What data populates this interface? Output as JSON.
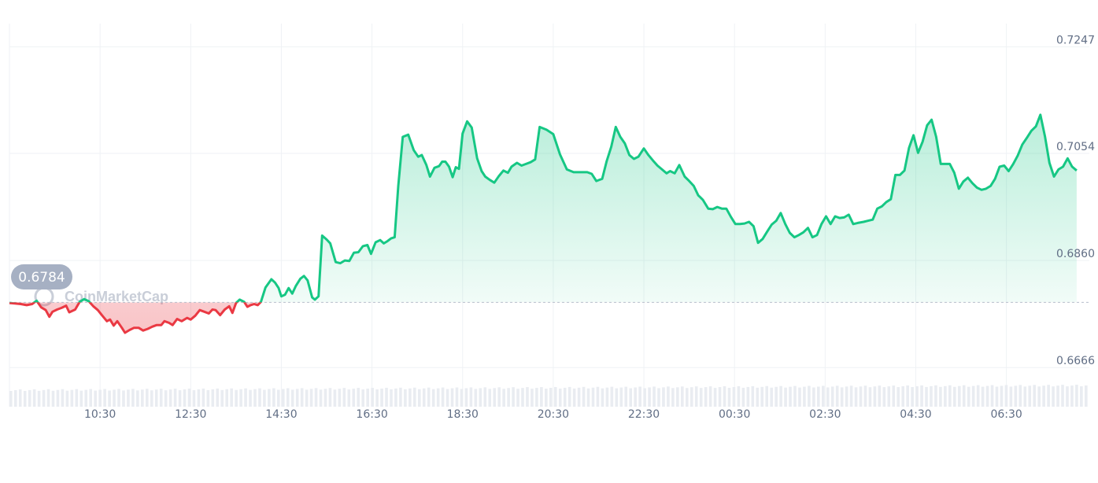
{
  "watermark": {
    "text": "CoinMarketCap"
  },
  "colors": {
    "up": "#16c784",
    "down": "#ea3943",
    "grid": "#eff2f5",
    "axis_text": "#616e85",
    "badge": "#a6b0c3",
    "volume": "#e9ecf1"
  },
  "chart_data": {
    "type": "area",
    "title": "",
    "xlabel": "",
    "ylabel": "",
    "y_ticks": [
      "0.7247",
      "0.7054",
      "0.6860",
      "0.6666"
    ],
    "y_tick_values": [
      0.7247,
      0.7054,
      0.686,
      0.6666
    ],
    "x_ticks": [
      "10:30",
      "12:30",
      "14:30",
      "16:30",
      "18:30",
      "20:30",
      "22:30",
      "00:30",
      "02:30",
      "04:30",
      "06:30"
    ],
    "x_tick_hours": [
      1.5,
      3.5,
      5.5,
      7.5,
      9.5,
      11.5,
      13.5,
      15.5,
      17.5,
      19.5,
      21.5
    ],
    "x_range_hours": [
      -0.5,
      23.33
    ],
    "x_axis_note": "hours after 09:00",
    "ylim": [
      0.6595,
      0.7275
    ],
    "reference": {
      "value": 0.6784,
      "label": "0.6784"
    },
    "grid": true,
    "series": [
      {
        "points": [
          [
            -0.5,
            0.6783
          ],
          [
            -0.38,
            0.6782
          ],
          [
            -0.25,
            0.6781
          ],
          [
            -0.12,
            0.6779
          ],
          [
            0.0,
            0.6781
          ],
          [
            0.1,
            0.6787
          ],
          [
            0.2,
            0.6775
          ],
          [
            0.3,
            0.677
          ],
          [
            0.38,
            0.6758
          ],
          [
            0.45,
            0.6767
          ],
          [
            0.55,
            0.6771
          ],
          [
            0.65,
            0.6774
          ],
          [
            0.75,
            0.6778
          ],
          [
            0.82,
            0.6766
          ],
          [
            0.95,
            0.6771
          ],
          [
            1.05,
            0.6785
          ],
          [
            1.15,
            0.679
          ],
          [
            1.25,
            0.6786
          ],
          [
            1.35,
            0.6777
          ],
          [
            1.45,
            0.677
          ],
          [
            1.55,
            0.676
          ],
          [
            1.65,
            0.675
          ],
          [
            1.72,
            0.6753
          ],
          [
            1.8,
            0.6742
          ],
          [
            1.88,
            0.675
          ],
          [
            1.98,
            0.6738
          ],
          [
            2.05,
            0.6729
          ],
          [
            2.15,
            0.6734
          ],
          [
            2.25,
            0.6738
          ],
          [
            2.35,
            0.6738
          ],
          [
            2.45,
            0.6733
          ],
          [
            2.55,
            0.6736
          ],
          [
            2.65,
            0.674
          ],
          [
            2.75,
            0.6743
          ],
          [
            2.85,
            0.6743
          ],
          [
            2.92,
            0.675
          ],
          [
            3.02,
            0.6747
          ],
          [
            3.1,
            0.6743
          ],
          [
            3.2,
            0.6754
          ],
          [
            3.3,
            0.675
          ],
          [
            3.42,
            0.6756
          ],
          [
            3.5,
            0.6753
          ],
          [
            3.6,
            0.676
          ],
          [
            3.7,
            0.677
          ],
          [
            3.8,
            0.6767
          ],
          [
            3.9,
            0.6764
          ],
          [
            3.98,
            0.6771
          ],
          [
            4.05,
            0.677
          ],
          [
            4.15,
            0.6761
          ],
          [
            4.25,
            0.6771
          ],
          [
            4.35,
            0.6777
          ],
          [
            4.42,
            0.6765
          ],
          [
            4.5,
            0.6783
          ],
          [
            4.58,
            0.6789
          ],
          [
            4.68,
            0.6785
          ],
          [
            4.75,
            0.6776
          ],
          [
            4.82,
            0.6779
          ],
          [
            4.9,
            0.6781
          ],
          [
            4.98,
            0.6779
          ],
          [
            5.05,
            0.6785
          ],
          [
            5.15,
            0.6811
          ],
          [
            5.28,
            0.6826
          ],
          [
            5.36,
            0.682
          ],
          [
            5.44,
            0.681
          ],
          [
            5.5,
            0.6795
          ],
          [
            5.58,
            0.6798
          ],
          [
            5.66,
            0.681
          ],
          [
            5.74,
            0.68
          ],
          [
            5.82,
            0.6814
          ],
          [
            5.92,
            0.6827
          ],
          [
            6.0,
            0.6832
          ],
          [
            6.08,
            0.6824
          ],
          [
            6.18,
            0.6793
          ],
          [
            6.24,
            0.6789
          ],
          [
            6.32,
            0.6795
          ],
          [
            6.4,
            0.6905
          ],
          [
            6.5,
            0.6898
          ],
          [
            6.58,
            0.6891
          ],
          [
            6.7,
            0.6857
          ],
          [
            6.8,
            0.6855
          ],
          [
            6.9,
            0.686
          ],
          [
            7.0,
            0.6859
          ],
          [
            7.1,
            0.6874
          ],
          [
            7.2,
            0.6875
          ],
          [
            7.3,
            0.6886
          ],
          [
            7.4,
            0.6888
          ],
          [
            7.48,
            0.6872
          ],
          [
            7.58,
            0.6893
          ],
          [
            7.68,
            0.6897
          ],
          [
            7.76,
            0.6891
          ],
          [
            7.84,
            0.6895
          ],
          [
            7.92,
            0.69
          ],
          [
            8.0,
            0.6902
          ],
          [
            8.08,
            0.6995
          ],
          [
            8.18,
            0.7084
          ],
          [
            8.3,
            0.7088
          ],
          [
            8.42,
            0.706
          ],
          [
            8.52,
            0.7048
          ],
          [
            8.6,
            0.7051
          ],
          [
            8.7,
            0.7033
          ],
          [
            8.78,
            0.7012
          ],
          [
            8.88,
            0.7028
          ],
          [
            8.98,
            0.7031
          ],
          [
            9.05,
            0.7039
          ],
          [
            9.12,
            0.7039
          ],
          [
            9.2,
            0.703
          ],
          [
            9.28,
            0.7011
          ],
          [
            9.35,
            0.7029
          ],
          [
            9.42,
            0.7026
          ],
          [
            9.5,
            0.709
          ],
          [
            9.6,
            0.7112
          ],
          [
            9.7,
            0.7101
          ],
          [
            9.82,
            0.7045
          ],
          [
            9.92,
            0.7022
          ],
          [
            10.0,
            0.7012
          ],
          [
            10.1,
            0.7006
          ],
          [
            10.2,
            0.7001
          ],
          [
            10.3,
            0.7013
          ],
          [
            10.4,
            0.7023
          ],
          [
            10.5,
            0.7019
          ],
          [
            10.58,
            0.703
          ],
          [
            10.7,
            0.7037
          ],
          [
            10.8,
            0.7032
          ],
          [
            10.9,
            0.7035
          ],
          [
            11.0,
            0.7038
          ],
          [
            11.1,
            0.7043
          ],
          [
            11.2,
            0.7102
          ],
          [
            11.35,
            0.7097
          ],
          [
            11.5,
            0.7089
          ],
          [
            11.65,
            0.7052
          ],
          [
            11.8,
            0.7025
          ],
          [
            11.95,
            0.702
          ],
          [
            12.1,
            0.702
          ],
          [
            12.25,
            0.702
          ],
          [
            12.35,
            0.7017
          ],
          [
            12.45,
            0.7004
          ],
          [
            12.58,
            0.7008
          ],
          [
            12.68,
            0.704
          ],
          [
            12.78,
            0.7066
          ],
          [
            12.88,
            0.7102
          ],
          [
            12.98,
            0.7084
          ],
          [
            13.08,
            0.7072
          ],
          [
            13.18,
            0.7051
          ],
          [
            13.28,
            0.7044
          ],
          [
            13.38,
            0.7048
          ],
          [
            13.5,
            0.7063
          ],
          [
            13.6,
            0.7051
          ],
          [
            13.7,
            0.7041
          ],
          [
            13.8,
            0.7032
          ],
          [
            13.9,
            0.7025
          ],
          [
            14.0,
            0.7018
          ],
          [
            14.08,
            0.7022
          ],
          [
            14.18,
            0.7018
          ],
          [
            14.28,
            0.7033
          ],
          [
            14.4,
            0.7012
          ],
          [
            14.5,
            0.7004
          ],
          [
            14.6,
            0.6995
          ],
          [
            14.7,
            0.6978
          ],
          [
            14.8,
            0.697
          ],
          [
            14.92,
            0.6954
          ],
          [
            15.02,
            0.6953
          ],
          [
            15.12,
            0.6957
          ],
          [
            15.22,
            0.6954
          ],
          [
            15.32,
            0.6954
          ],
          [
            15.42,
            0.6939
          ],
          [
            15.52,
            0.6926
          ],
          [
            15.62,
            0.6926
          ],
          [
            15.72,
            0.6927
          ],
          [
            15.82,
            0.693
          ],
          [
            15.92,
            0.6922
          ],
          [
            16.02,
            0.6892
          ],
          [
            16.12,
            0.6899
          ],
          [
            16.22,
            0.6912
          ],
          [
            16.32,
            0.6925
          ],
          [
            16.42,
            0.6932
          ],
          [
            16.52,
            0.6946
          ],
          [
            16.62,
            0.6926
          ],
          [
            16.72,
            0.691
          ],
          [
            16.82,
            0.6902
          ],
          [
            16.92,
            0.6906
          ],
          [
            17.02,
            0.6911
          ],
          [
            17.12,
            0.6919
          ],
          [
            17.22,
            0.6902
          ],
          [
            17.32,
            0.6906
          ],
          [
            17.42,
            0.6926
          ],
          [
            17.52,
            0.694
          ],
          [
            17.62,
            0.6926
          ],
          [
            17.72,
            0.694
          ],
          [
            17.82,
            0.6937
          ],
          [
            17.92,
            0.6938
          ],
          [
            18.02,
            0.6943
          ],
          [
            18.12,
            0.6926
          ],
          [
            18.22,
            0.6928
          ],
          [
            18.35,
            0.693
          ],
          [
            18.45,
            0.6932
          ],
          [
            18.55,
            0.6934
          ],
          [
            18.65,
            0.6954
          ],
          [
            18.75,
            0.6958
          ],
          [
            18.85,
            0.6966
          ],
          [
            18.95,
            0.6971
          ],
          [
            19.05,
            0.7015
          ],
          [
            19.15,
            0.7015
          ],
          [
            19.25,
            0.7023
          ],
          [
            19.35,
            0.7064
          ],
          [
            19.45,
            0.7087
          ],
          [
            19.55,
            0.7055
          ],
          [
            19.65,
            0.7075
          ],
          [
            19.75,
            0.7105
          ],
          [
            19.85,
            0.7115
          ],
          [
            19.95,
            0.7084
          ],
          [
            20.05,
            0.7035
          ],
          [
            20.15,
            0.7035
          ],
          [
            20.25,
            0.7035
          ],
          [
            20.35,
            0.7019
          ],
          [
            20.45,
            0.699
          ],
          [
            20.55,
            0.7003
          ],
          [
            20.65,
            0.701
          ],
          [
            20.75,
            0.7
          ],
          [
            20.85,
            0.6992
          ],
          [
            20.95,
            0.6988
          ],
          [
            21.05,
            0.699
          ],
          [
            21.15,
            0.6995
          ],
          [
            21.25,
            0.7008
          ],
          [
            21.35,
            0.703
          ],
          [
            21.45,
            0.7032
          ],
          [
            21.55,
            0.7022
          ],
          [
            21.65,
            0.7035
          ],
          [
            21.75,
            0.705
          ],
          [
            21.85,
            0.707
          ],
          [
            21.95,
            0.7082
          ],
          [
            22.05,
            0.7095
          ],
          [
            22.15,
            0.7103
          ],
          [
            22.25,
            0.7124
          ],
          [
            22.35,
            0.7085
          ],
          [
            22.45,
            0.7037
          ],
          [
            22.55,
            0.7012
          ],
          [
            22.65,
            0.7025
          ],
          [
            22.75,
            0.703
          ],
          [
            22.85,
            0.7045
          ],
          [
            22.95,
            0.703
          ],
          [
            23.05,
            0.7023
          ]
        ]
      }
    ]
  }
}
